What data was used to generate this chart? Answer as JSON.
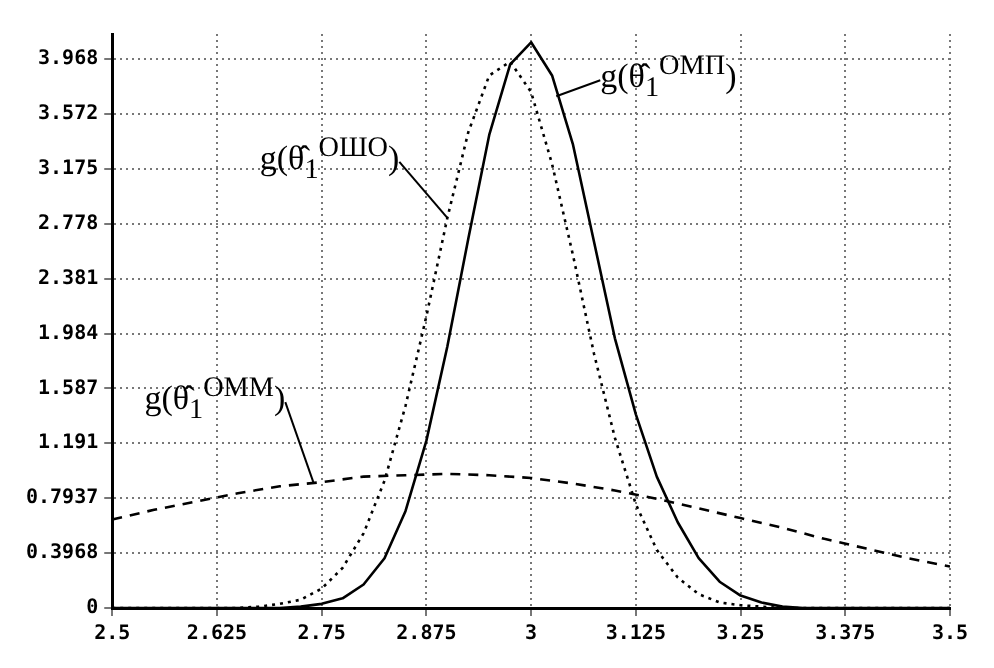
{
  "chart_data": {
    "type": "line",
    "x": [
      2.5,
      2.525,
      2.55,
      2.575,
      2.6,
      2.625,
      2.65,
      2.675,
      2.7,
      2.725,
      2.75,
      2.775,
      2.8,
      2.825,
      2.85,
      2.875,
      2.9,
      2.925,
      2.95,
      2.975,
      3,
      3.025,
      3.05,
      3.075,
      3.1,
      3.125,
      3.15,
      3.175,
      3.2,
      3.225,
      3.25,
      3.275,
      3.3,
      3.325,
      3.35,
      3.375,
      3.4,
      3.425,
      3.45,
      3.475,
      3.5
    ],
    "series": [
      {
        "color": "#000000",
        "line_style": "solid",
        "values": [
          0,
          0,
          0,
          0,
          0,
          0,
          0,
          0,
          0,
          0.01,
          0.03,
          0.07,
          0.17,
          0.36,
          0.7,
          1.21,
          1.89,
          2.67,
          3.42,
          3.93,
          4.09,
          3.85,
          3.35,
          2.65,
          1.95,
          1.4,
          0.95,
          0.62,
          0.36,
          0.19,
          0.09,
          0.04,
          0.01,
          0,
          0,
          0,
          0,
          0,
          0,
          0,
          0
        ]
      },
      {
        "color": "#000000",
        "line_style": "dotted",
        "values": [
          0,
          0,
          0,
          0,
          0,
          0,
          0,
          0.01,
          0.03,
          0.06,
          0.14,
          0.29,
          0.54,
          0.92,
          1.46,
          2.11,
          2.82,
          3.44,
          3.85,
          3.95,
          3.73,
          3.21,
          2.55,
          1.84,
          1.23,
          0.75,
          0.42,
          0.22,
          0.1,
          0.04,
          0.02,
          0.01,
          0,
          0,
          0,
          0,
          0,
          0,
          0,
          0,
          0
        ]
      },
      {
        "color": "#000000",
        "line_style": "dashed",
        "x": [
          2.5,
          2.55,
          2.6,
          2.65,
          2.7,
          2.75,
          2.8,
          2.85,
          2.9,
          2.95,
          3,
          3.05,
          3.1,
          3.15,
          3.2,
          3.25,
          3.3,
          3.35,
          3.4,
          3.45,
          3.5
        ],
        "values": [
          0.64,
          0.71,
          0.77,
          0.83,
          0.88,
          0.91,
          0.95,
          0.96,
          0.97,
          0.96,
          0.94,
          0.9,
          0.85,
          0.79,
          0.72,
          0.65,
          0.58,
          0.5,
          0.43,
          0.36,
          0.3
        ]
      }
    ],
    "xlim": [
      2.5,
      3.5
    ],
    "xticks": [
      2.5,
      2.625,
      2.75,
      2.875,
      3,
      3.125,
      3.25,
      3.375,
      3.5
    ],
    "ylim": [
      0,
      4.15
    ],
    "yticks": [
      0,
      0.3968,
      0.7937,
      1.191,
      1.587,
      1.984,
      2.381,
      2.778,
      3.175,
      3.572,
      3.968
    ],
    "grid": true,
    "legend": false,
    "marker": "none",
    "annotations": [
      {
        "text": "g(θ̂$_{1}$$^{ОМП}$)",
        "x": 3.03,
        "y": 3.7
      },
      {
        "text": "g(θ̂$_{1}$$^{ОШО}$)",
        "x": 2.9,
        "y": 2.82
      },
      {
        "text": "g(θ̂$_{1}$$^{ОММ}$)",
        "x": 2.74,
        "y": 0.91
      }
    ]
  }
}
